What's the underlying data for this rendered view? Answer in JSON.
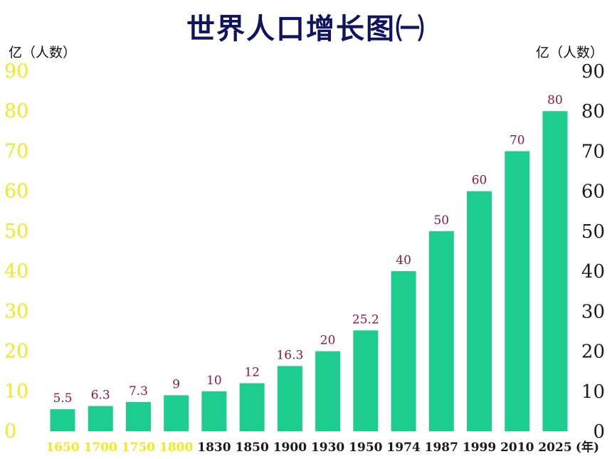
{
  "chart_data": {
    "type": "bar",
    "title": "世界人口增长图㈠",
    "y_unit_left": "亿（人数）",
    "y_unit_right": "亿（人数）",
    "x_unit": "(年)",
    "categories": [
      "1650",
      "1700",
      "1750",
      "1800",
      "1830",
      "1850",
      "1900",
      "1930",
      "1950",
      "1974",
      "1987",
      "1999",
      "2010",
      "2025"
    ],
    "values": [
      5.5,
      6.3,
      7.3,
      9,
      10,
      12,
      16.3,
      20,
      25.2,
      40,
      50,
      60,
      70,
      80
    ],
    "value_labels": [
      "5.5",
      "6.3",
      "7.3",
      "9",
      "10",
      "12",
      "16.3",
      "20",
      "25.2",
      "40",
      "50",
      "60",
      "70",
      "80"
    ],
    "highlighted_categories": [
      "1650",
      "1700",
      "1750",
      "1800"
    ],
    "ylim": [
      0,
      90
    ],
    "left_ticks": [
      "0",
      "10",
      "20",
      "30",
      "40",
      "50",
      "60",
      "70",
      "80",
      "90"
    ],
    "right_ticks": [
      "0",
      "10",
      "20",
      "30",
      "40",
      "50",
      "60",
      "70",
      "80",
      "90"
    ],
    "grid": false,
    "legend": "none",
    "colors": {
      "bar": "#1dcc8f",
      "title": "#0f1460",
      "left_ticks": "#f2ea19",
      "right_ticks": "#1b1b1b",
      "value_labels": "#8a1550",
      "x_label_highlight": "#f2ea19",
      "x_label_normal": "#1b1b1b"
    }
  }
}
